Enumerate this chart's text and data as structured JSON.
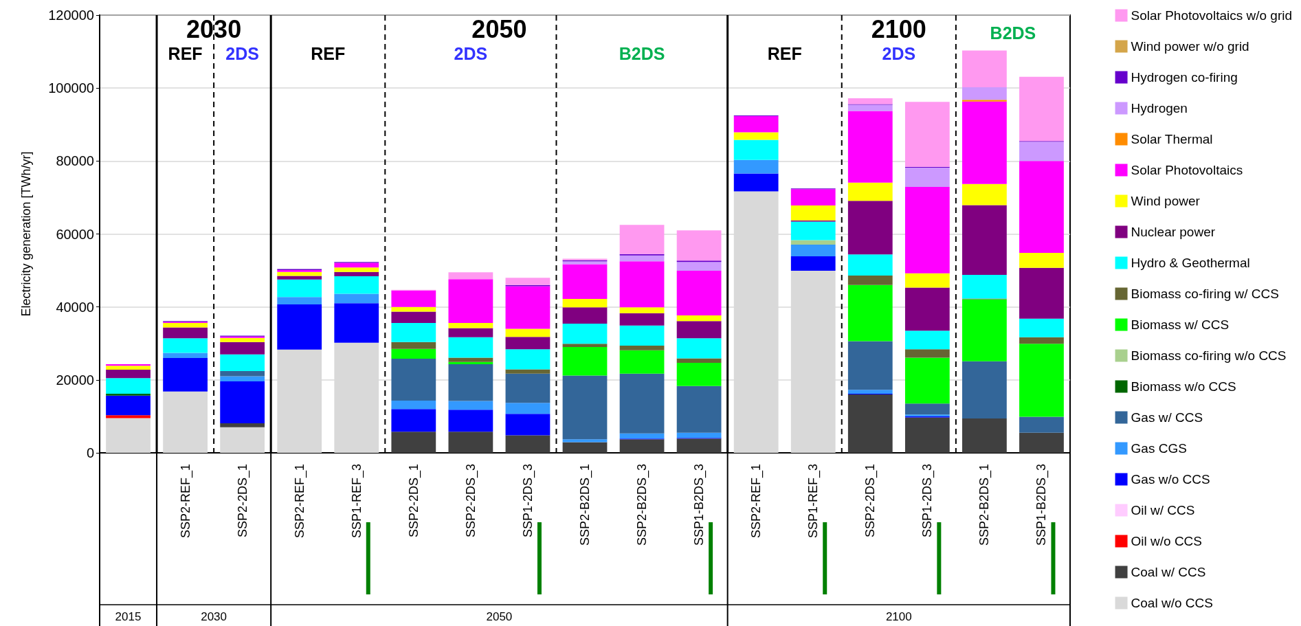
{
  "chart_data": {
    "type": "bar",
    "stacked": true,
    "ylabel": "Electricity generation [TWh/yr]",
    "categories": [
      null,
      "SSP2-REF_1",
      "SSP2-2DS_1",
      "SSP2-REF_1",
      "SSP1-REF_3",
      "SSP2-2DS_1",
      "SSP2-2DS_3",
      "SSP1-2DS_3",
      "SSP2-B2DS_1",
      "SSP2-B2DS_3",
      "SSP1-B2DS_3",
      "SSP2-REF_1",
      "SSP1-REF_3",
      "SSP2-2DS_1",
      "SSP1-2DS_3",
      "SSP2-B2DS_1",
      "SSP1-B2DS_3"
    ],
    "ylim": [
      0,
      120000
    ],
    "yticks": [
      0,
      20000,
      40000,
      60000,
      80000,
      100000,
      120000
    ],
    "grid": "y",
    "legend": "right",
    "annotations": [
      "2030",
      "REF",
      "2DS",
      "2050",
      "REF",
      "2DS",
      "B2DS",
      "2100",
      "REF",
      "2DS",
      "B2DS",
      "2015",
      "2030",
      "2050",
      "2100"
    ],
    "series": [
      {
        "name": "Coal w/o CCS",
        "color": "#d9d9d9",
        "values": [
          9500,
          16800,
          7000,
          28300,
          30200,
          null,
          null,
          null,
          null,
          null,
          null,
          71700,
          49900,
          null,
          null,
          null,
          null
        ]
      },
      {
        "name": "Coal w/ CCS",
        "color": "#404040",
        "values": [
          null,
          null,
          1100,
          null,
          null,
          5800,
          5800,
          4800,
          2900,
          3700,
          3900,
          null,
          null,
          16000,
          9700,
          9400,
          5500
        ]
      },
      {
        "name": "Oil w/o CCS",
        "color": "#ff0000",
        "values": [
          800,
          null,
          null,
          null,
          null,
          null,
          null,
          null,
          null,
          null,
          null,
          null,
          null,
          null,
          null,
          null,
          null
        ]
      },
      {
        "name": "Oil w/ CCS",
        "color": "#ffccff",
        "values": [
          null,
          null,
          null,
          null,
          null,
          null,
          null,
          null,
          null,
          null,
          null,
          null,
          null,
          null,
          null,
          null,
          null
        ]
      },
      {
        "name": "Gas w/o CCS",
        "color": "#0000ff",
        "values": [
          5400,
          9200,
          11500,
          12400,
          10800,
          6200,
          6000,
          5900,
          null,
          200,
          200,
          4900,
          4000,
          200,
          300,
          null,
          null
        ]
      },
      {
        "name": "Gas CGS",
        "color": "#3399ff",
        "values": [
          null,
          1400,
          1400,
          2000,
          2600,
          2300,
          2400,
          3000,
          800,
          1400,
          1400,
          3700,
          3200,
          1100,
          500,
          null,
          null
        ]
      },
      {
        "name": "Gas w/ CCS",
        "color": "#336699",
        "values": [
          null,
          null,
          1400,
          null,
          null,
          11500,
          10100,
          8000,
          17500,
          16400,
          12800,
          null,
          null,
          13300,
          3000,
          15700,
          4400
        ]
      },
      {
        "name": "Biomass w/o CCS",
        "color": "#006600",
        "values": [
          500,
          null,
          null,
          null,
          null,
          null,
          null,
          null,
          null,
          null,
          null,
          null,
          null,
          null,
          null,
          null,
          null
        ]
      },
      {
        "name": "Biomass co-firing w/o CCS",
        "color": "#a9d08e",
        "values": [
          null,
          null,
          null,
          null,
          null,
          null,
          null,
          null,
          null,
          null,
          null,
          null,
          1200,
          null,
          null,
          null,
          null
        ]
      },
      {
        "name": "Biomass w/ CCS",
        "color": "#00ff00",
        "values": [
          null,
          null,
          null,
          null,
          null,
          2700,
          600,
          null,
          7800,
          6400,
          6400,
          null,
          null,
          15400,
          12600,
          17000,
          20000
        ]
      },
      {
        "name": "Biomass co-firing w/ CCS",
        "color": "#666633",
        "values": [
          null,
          null,
          null,
          null,
          null,
          1900,
          1200,
          1200,
          900,
          1300,
          1200,
          null,
          null,
          2600,
          2300,
          200,
          1800
        ]
      },
      {
        "name": "Hydro & Geothermal",
        "color": "#00ffff",
        "values": [
          4300,
          4000,
          4600,
          4800,
          4800,
          5200,
          5600,
          5500,
          5500,
          5500,
          5500,
          5500,
          5100,
          5800,
          5100,
          6500,
          5100
        ]
      },
      {
        "name": "Nuclear power",
        "color": "#800080",
        "values": [
          2300,
          3000,
          3400,
          1000,
          1200,
          3100,
          2500,
          3400,
          4500,
          3400,
          4700,
          null,
          300,
          14700,
          11800,
          19100,
          13900
        ]
      },
      {
        "name": "Wind power",
        "color": "#ffff00",
        "values": [
          1100,
          1200,
          1100,
          1100,
          1200,
          1300,
          1400,
          2200,
          2300,
          1600,
          1600,
          2100,
          4100,
          5000,
          3900,
          5800,
          4100
        ]
      },
      {
        "name": "Solar Photovoltaics",
        "color": "#ff00ff",
        "values": [
          400,
          300,
          400,
          500,
          1300,
          4500,
          12000,
          11700,
          9500,
          12600,
          12200,
          4400,
          4500,
          19600,
          23700,
          22600,
          25200
        ]
      },
      {
        "name": "Solar Thermal",
        "color": "#ff8c00",
        "values": [
          null,
          null,
          null,
          null,
          null,
          null,
          null,
          null,
          null,
          null,
          null,
          null,
          null,
          null,
          null,
          500,
          null
        ]
      },
      {
        "name": "Hydrogen",
        "color": "#cc99ff",
        "values": [
          null,
          null,
          null,
          null,
          null,
          null,
          null,
          null,
          800,
          1600,
          2400,
          null,
          null,
          1700,
          5300,
          3400,
          5300
        ]
      },
      {
        "name": "Hydrogen co-firing",
        "color": "#6600cc",
        "values": [
          null,
          200,
          200,
          300,
          200,
          null,
          null,
          300,
          300,
          400,
          400,
          200,
          200,
          200,
          200,
          null,
          200
        ]
      },
      {
        "name": "Wind power w/o grid",
        "color": "#d4a54a",
        "values": [
          null,
          null,
          null,
          null,
          null,
          null,
          null,
          null,
          null,
          null,
          null,
          null,
          null,
          null,
          null,
          null,
          null
        ]
      },
      {
        "name": "Solar Photovoltaics w/o grid",
        "color": "#ff99f0",
        "values": [
          null,
          null,
          null,
          null,
          null,
          200,
          1900,
          2000,
          400,
          8000,
          8300,
          null,
          null,
          1600,
          17800,
          10100,
          17600
        ]
      }
    ]
  }
}
